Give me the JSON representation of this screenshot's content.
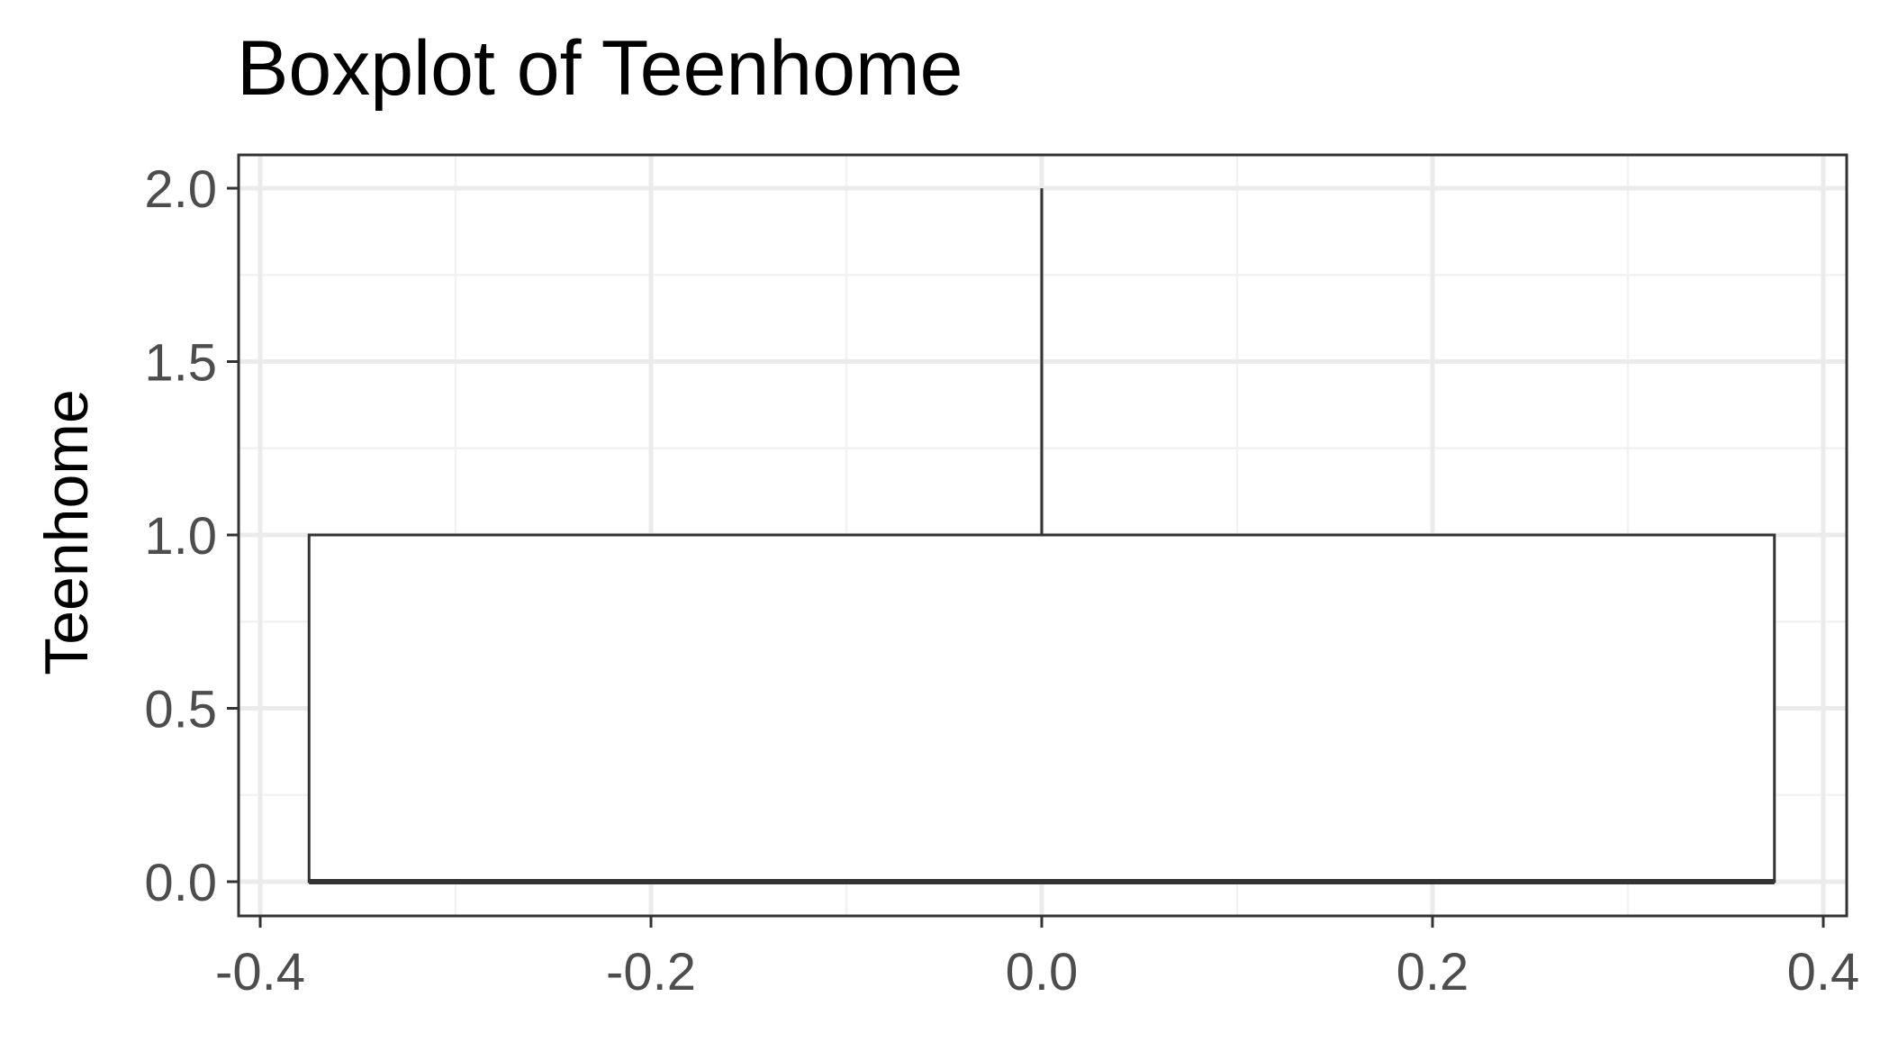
{
  "chart_data": {
    "type": "boxplot",
    "title": "Boxplot of Teenhome",
    "xlabel": "",
    "ylabel": "Teenhome",
    "xlim": [
      -0.4,
      0.4
    ],
    "ylim": [
      0.0,
      2.0
    ],
    "x_ticks": [
      "-0.4",
      "-0.2",
      "0.0",
      "0.2",
      "0.4"
    ],
    "x_tick_values": [
      -0.4,
      -0.2,
      0.0,
      0.2,
      0.4
    ],
    "y_ticks": [
      "0.0",
      "0.5",
      "1.0",
      "1.5",
      "2.0"
    ],
    "y_tick_values": [
      0.0,
      0.5,
      1.0,
      1.5,
      2.0
    ],
    "grid": true,
    "box": {
      "x_center": 0.0,
      "x_left": -0.375,
      "x_right": 0.375,
      "min": 0.0,
      "q1": 0.0,
      "median": 0.0,
      "q3": 1.0,
      "max": 2.0
    },
    "colors": {
      "panel_border": "#333333",
      "grid_major": "#ebebeb",
      "grid_minor": "#f2f2f2",
      "box_line": "#333333",
      "box_fill": "#ffffff",
      "tick_text": "#4d4d4d"
    }
  }
}
